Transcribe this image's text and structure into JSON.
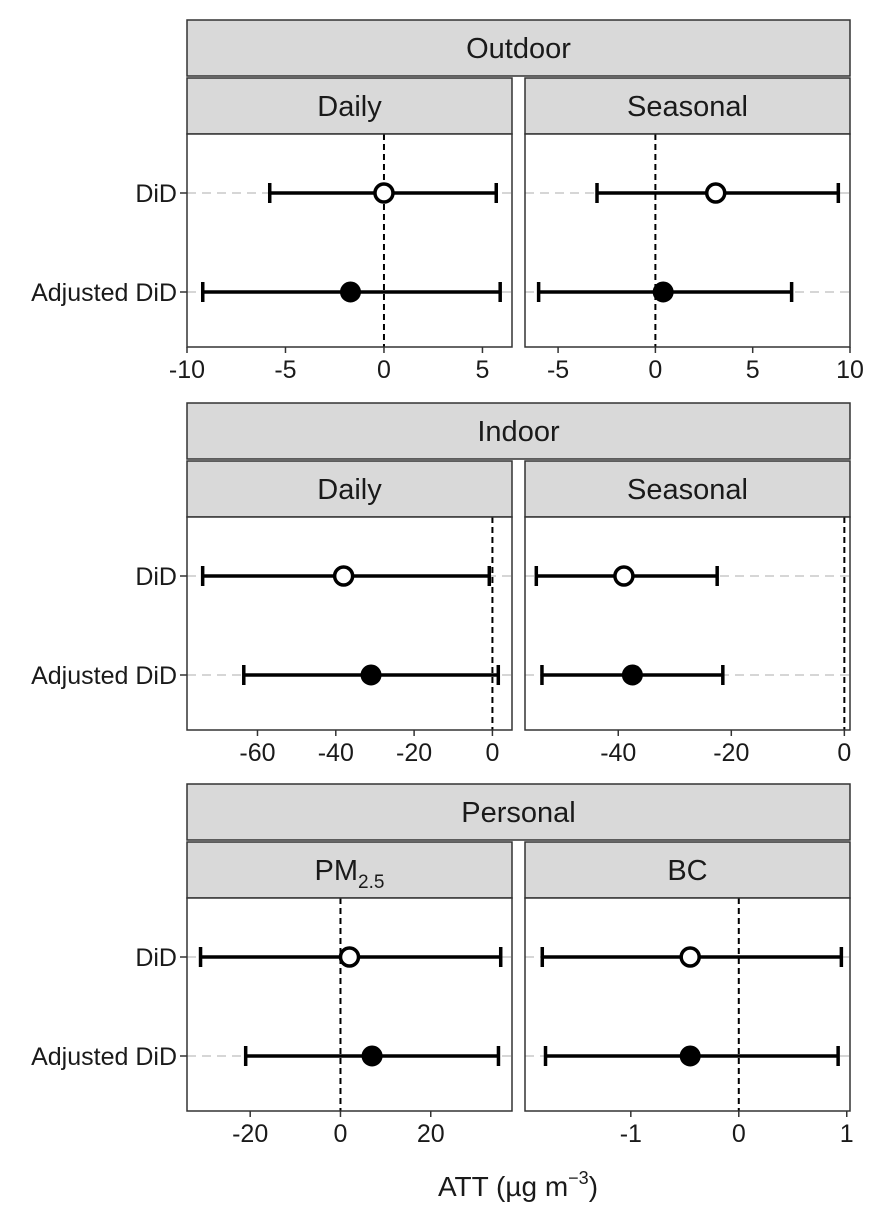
{
  "chart_data": {
    "type": "forest",
    "x_axis_title": {
      "text": "ATT (µg m",
      "superscript": "−3",
      "suffix": ")"
    },
    "categories": [
      "DiD",
      "Adjusted DiD"
    ],
    "colors": {
      "strip_fill": "#d9d9d9",
      "ink": "#000000",
      "gridline": "#c8c8c8"
    },
    "groups": [
      {
        "name": "Outdoor",
        "panels": [
          {
            "title": "Daily",
            "xlim": [
              -10,
              6.5
            ],
            "ticks": [
              -10,
              -5,
              0,
              5
            ],
            "tick_labels": [
              "-10",
              "-5",
              "0",
              "5"
            ],
            "points": [
              {
                "category": "DiD",
                "estimate": 0,
                "lower": -5.8,
                "upper": 5.7,
                "marker": "open"
              },
              {
                "category": "Adjusted DiD",
                "estimate": -1.7,
                "lower": -9.2,
                "upper": 5.9,
                "marker": "filled"
              }
            ]
          },
          {
            "title": "Seasonal",
            "xlim": [
              -6.7,
              10
            ],
            "ticks": [
              -5,
              0,
              5,
              10
            ],
            "tick_labels": [
              "-5",
              "0",
              "5",
              "10"
            ],
            "points": [
              {
                "category": "DiD",
                "estimate": 3.1,
                "lower": -3.0,
                "upper": 9.4,
                "marker": "open"
              },
              {
                "category": "Adjusted DiD",
                "estimate": 0.4,
                "lower": -6.0,
                "upper": 7.0,
                "marker": "filled"
              }
            ]
          }
        ]
      },
      {
        "name": "Indoor",
        "panels": [
          {
            "title": "Daily",
            "xlim": [
              -78,
              5
            ],
            "ticks": [
              -60,
              -40,
              -20,
              0
            ],
            "tick_labels": [
              "-60",
              "-40",
              "-20",
              "0"
            ],
            "points": [
              {
                "category": "DiD",
                "estimate": -38,
                "lower": -74,
                "upper": -0.8,
                "marker": "open"
              },
              {
                "category": "Adjusted DiD",
                "estimate": -31,
                "lower": -63.5,
                "upper": 1.5,
                "marker": "filled"
              }
            ]
          },
          {
            "title": "Seasonal",
            "xlim": [
              -56.5,
              1
            ],
            "ticks": [
              -40,
              -20,
              0
            ],
            "tick_labels": [
              "-40",
              "-20",
              "0"
            ],
            "points": [
              {
                "category": "DiD",
                "estimate": -39,
                "lower": -54.5,
                "upper": -22.5,
                "marker": "open"
              },
              {
                "category": "Adjusted DiD",
                "estimate": -37.5,
                "lower": -53.5,
                "upper": -21.5,
                "marker": "filled"
              }
            ]
          }
        ]
      },
      {
        "name": "Personal",
        "panels": [
          {
            "title": "PM",
            "title_subscript": "2.5",
            "xlim": [
              -34,
              38
            ],
            "ticks": [
              -20,
              0,
              20
            ],
            "tick_labels": [
              "-20",
              "0",
              "20"
            ],
            "points": [
              {
                "category": "DiD",
                "estimate": 2,
                "lower": -31,
                "upper": 35.5,
                "marker": "open"
              },
              {
                "category": "Adjusted DiD",
                "estimate": 7,
                "lower": -21,
                "upper": 35,
                "marker": "filled"
              }
            ]
          },
          {
            "title": "BC",
            "xlim": [
              -1.98,
              1.03
            ],
            "ticks": [
              -1,
              0,
              1
            ],
            "tick_labels": [
              "-1",
              "0",
              "1"
            ],
            "points": [
              {
                "category": "DiD",
                "estimate": -0.45,
                "lower": -1.82,
                "upper": 0.95,
                "marker": "open"
              },
              {
                "category": "Adjusted DiD",
                "estimate": -0.45,
                "lower": -1.79,
                "upper": 0.92,
                "marker": "filled"
              }
            ]
          }
        ]
      }
    ]
  }
}
